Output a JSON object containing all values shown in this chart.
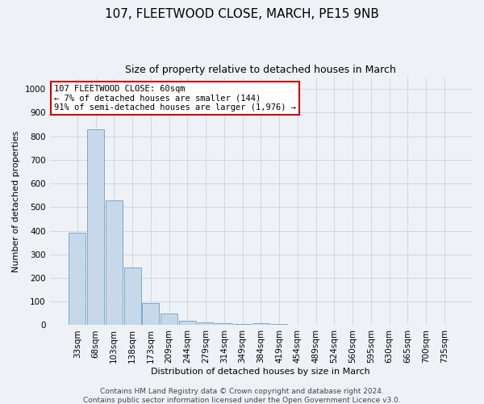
{
  "title": "107, FLEETWOOD CLOSE, MARCH, PE15 9NB",
  "subtitle": "Size of property relative to detached houses in March",
  "xlabel": "Distribution of detached houses by size in March",
  "ylabel": "Number of detached properties",
  "bar_color": "#c8d8eb",
  "bar_edge_color": "#7aaac8",
  "background_color": "#eef2f7",
  "categories": [
    "33sqm",
    "68sqm",
    "103sqm",
    "138sqm",
    "173sqm",
    "209sqm",
    "244sqm",
    "279sqm",
    "314sqm",
    "349sqm",
    "384sqm",
    "419sqm",
    "454sqm",
    "489sqm",
    "524sqm",
    "560sqm",
    "595sqm",
    "630sqm",
    "665sqm",
    "700sqm",
    "735sqm"
  ],
  "values": [
    390,
    830,
    530,
    245,
    95,
    50,
    20,
    12,
    8,
    5,
    8,
    6,
    0,
    0,
    0,
    0,
    0,
    0,
    0,
    0,
    0
  ],
  "ylim": [
    0,
    1050
  ],
  "yticks": [
    0,
    100,
    200,
    300,
    400,
    500,
    600,
    700,
    800,
    900,
    1000
  ],
  "annotation_text": "107 FLEETWOOD CLOSE: 60sqm\n← 7% of detached houses are smaller (144)\n91% of semi-detached houses are larger (1,976) →",
  "annotation_box_color": "#ffffff",
  "annotation_border_color": "#cc0000",
  "footer_text": "Contains HM Land Registry data © Crown copyright and database right 2024.\nContains public sector information licensed under the Open Government Licence v3.0.",
  "grid_color": "#c8d4e0",
  "title_fontsize": 11,
  "subtitle_fontsize": 9,
  "axis_label_fontsize": 8,
  "tick_fontsize": 7.5,
  "annotation_fontsize": 7.5,
  "footer_fontsize": 6.5
}
